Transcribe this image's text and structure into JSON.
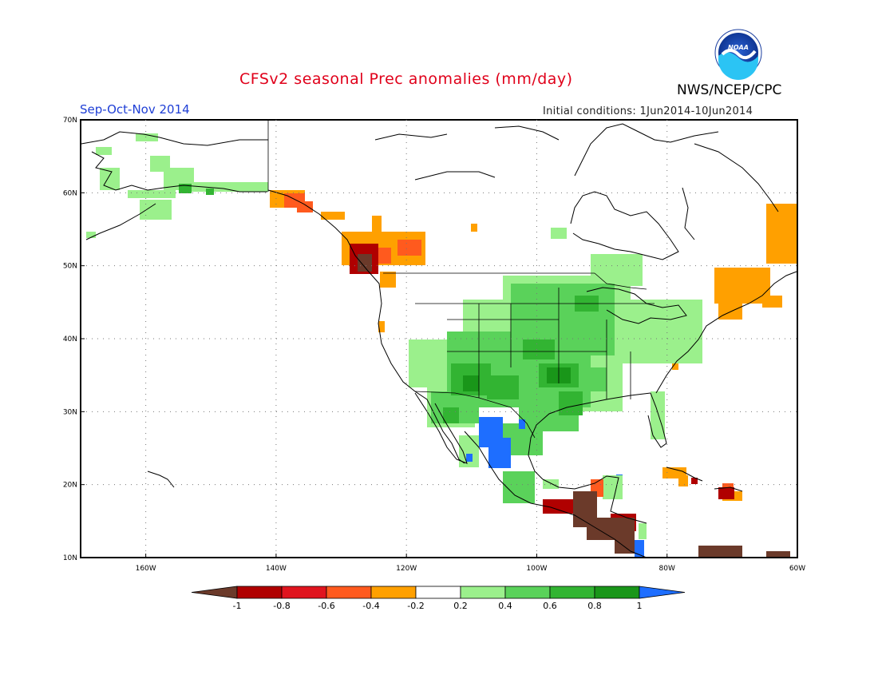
{
  "header": {
    "title": "CFSv2 seasonal Prec anomalies (mm/day)",
    "season": "Sep-Oct-Nov 2014",
    "initial_conditions": "Initial conditions: 1Jun2014-10Jun2014",
    "agency": "NWS/NCEP/CPC",
    "logo_text": "NOAA"
  },
  "map": {
    "projection": "latitude-longitude",
    "lon_range": [
      -170,
      -60
    ],
    "lat_range": [
      10,
      70
    ],
    "grid": true,
    "lat_labels": [
      "70N",
      "60N",
      "50N",
      "40N",
      "30N",
      "20N",
      "10N"
    ],
    "lon_labels": [
      "160W",
      "140W",
      "120W",
      "100W",
      "80W",
      "60W"
    ]
  },
  "colorbar": {
    "tick_labels": [
      "-1",
      "-0.8",
      "-0.6",
      "-0.4",
      "-0.2",
      "0.2",
      "0.4",
      "0.6",
      "0.8",
      "1"
    ],
    "colors": [
      "#6b3a2a",
      "#b00000",
      "#e0141e",
      "#ff5a1e",
      "#ffa000",
      "#ffffff",
      "#9bf08c",
      "#5ad25a",
      "#32b432",
      "#199619",
      "#1e6eff"
    ]
  },
  "anomaly_regions": [
    {
      "label": "Pacific Northwest coast",
      "category": "-0.4 to -0.2"
    },
    {
      "label": "Vancouver Island",
      "category": "-1 to -0.8"
    },
    {
      "label": "Central US plains",
      "category": "0.4 to 0.6"
    },
    {
      "label": "Southern Plains / Texas",
      "category": "0.6 to 0.8"
    },
    {
      "label": "Northwest Mexico",
      "category": "> 1"
    },
    {
      "label": "Central America",
      "category": "< -1"
    },
    {
      "label": "Atlantic Canada",
      "category": "-0.4 to -0.2"
    },
    {
      "label": "Alaska",
      "category": "0.2 to 0.4"
    }
  ]
}
